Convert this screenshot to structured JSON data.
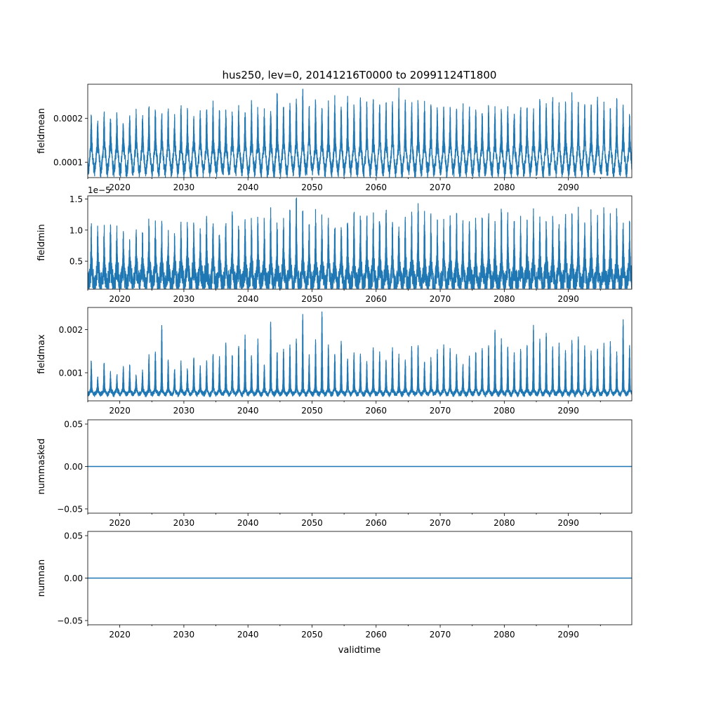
{
  "chart_data": {
    "type": "line",
    "title": "hus250, lev=0, 20141216T0000 to 20991124T1800",
    "xlabel": "validtime",
    "color": "#1f77b4",
    "time_range": [
      "2014-12-16T00:00",
      "2099-11-24T18:00"
    ],
    "xlim": [
      2015.0,
      2099.9
    ],
    "xticks": [
      2020,
      2030,
      2040,
      2050,
      2060,
      2070,
      2080,
      2090
    ],
    "xtick_labels": [
      "2020",
      "2030",
      "2040",
      "2050",
      "2060",
      "2070",
      "2080",
      "2090"
    ],
    "panels": [
      {
        "ylabel": "fieldmean",
        "offset_text": "",
        "ylim": [
          6.5e-05,
          0.000278
        ],
        "yticks": [
          0.0001,
          0.0002
        ],
        "ytick_labels": [
          "0.0001",
          "0.0002"
        ],
        "series": {
          "kind": "seasonal",
          "base_min": 8e-05,
          "base_max": 0.00014,
          "noise": 1.2e-05,
          "peak_years": [
            2015,
            2016,
            2017,
            2018,
            2019,
            2020,
            2021,
            2022,
            2023,
            2024,
            2025,
            2026,
            2027,
            2028,
            2029,
            2030,
            2031,
            2032,
            2033,
            2034,
            2035,
            2036,
            2037,
            2038,
            2039,
            2040,
            2041,
            2042,
            2043,
            2044,
            2045,
            2046,
            2047,
            2048,
            2049,
            2050,
            2051,
            2052,
            2053,
            2054,
            2055,
            2056,
            2057,
            2058,
            2059,
            2060,
            2061,
            2062,
            2063,
            2064,
            2065,
            2066,
            2067,
            2068,
            2069,
            2070,
            2071,
            2072,
            2073,
            2074,
            2075,
            2076,
            2077,
            2078,
            2079,
            2080,
            2081,
            2082,
            2083,
            2084,
            2085,
            2086,
            2087,
            2088,
            2089,
            2090,
            2091,
            2092,
            2093,
            2094,
            2095,
            2096,
            2097,
            2098,
            2099
          ],
          "peaks": [
            0.000205,
            0.000195,
            0.00021,
            0.0002,
            0.000215,
            0.00019,
            0.000205,
            0.00021,
            0.0002,
            0.000225,
            0.000215,
            0.000205,
            0.00022,
            0.0002,
            0.000225,
            0.000215,
            0.0002,
            0.00021,
            0.000225,
            0.00023,
            0.000215,
            0.00022,
            0.00021,
            0.000225,
            0.000215,
            0.00023,
            0.00022,
            0.000215,
            0.000225,
            0.000265,
            0.00022,
            0.000235,
            0.000245,
            0.000265,
            0.00023,
            0.00024,
            0.000225,
            0.00023,
            0.000245,
            0.000235,
            0.00024,
            0.00023,
            0.000245,
            0.000235,
            0.00024,
            0.00024,
            0.000235,
            0.000245,
            0.000265,
            0.00024,
            0.000235,
            0.00024,
            0.00023,
            0.000235,
            0.000225,
            0.00023,
            0.000225,
            0.000215,
            0.00023,
            0.000225,
            0.00022,
            0.000215,
            0.000225,
            0.00022,
            0.00022,
            0.000225,
            0.000215,
            0.00022,
            0.00023,
            0.000225,
            0.00025,
            0.000235,
            0.000245,
            0.000225,
            0.000235,
            0.00025,
            0.00024,
            0.000235,
            0.00024,
            0.000245,
            0.000235,
            0.000225,
            0.00024,
            0.00022,
            0.00021
          ]
        }
      },
      {
        "ylabel": "fieldmin",
        "offset_text": "1e−5",
        "ylim": [
          5e-07,
          1.55e-05
        ],
        "yticks": [
          5e-06,
          1e-05,
          1.5e-05
        ],
        "ytick_labels": [
          "0.5",
          "1.0",
          "1.5"
        ],
        "series": {
          "kind": "seasonal",
          "base_min": 1e-06,
          "base_max": 4e-06,
          "noise": 1.5e-06,
          "peak_years": [
            2015,
            2016,
            2017,
            2018,
            2019,
            2020,
            2021,
            2022,
            2023,
            2024,
            2025,
            2026,
            2027,
            2028,
            2029,
            2030,
            2031,
            2032,
            2033,
            2034,
            2035,
            2036,
            2037,
            2038,
            2039,
            2040,
            2041,
            2042,
            2043,
            2044,
            2045,
            2046,
            2047,
            2048,
            2049,
            2050,
            2051,
            2052,
            2053,
            2054,
            2055,
            2056,
            2057,
            2058,
            2059,
            2060,
            2061,
            2062,
            2063,
            2064,
            2065,
            2066,
            2067,
            2068,
            2069,
            2070,
            2071,
            2072,
            2073,
            2074,
            2075,
            2076,
            2077,
            2078,
            2079,
            2080,
            2081,
            2082,
            2083,
            2084,
            2085,
            2086,
            2087,
            2088,
            2089,
            2090,
            2091,
            2092,
            2093,
            2094,
            2095,
            2096,
            2097,
            2098,
            2099
          ],
          "peaks": [
            1e-05,
            9.5e-06,
            1e-05,
            1e-05,
            1e-05,
            9e-06,
            8e-06,
            9.5e-06,
            8.5e-06,
            1.15e-05,
            1.1e-05,
            1e-05,
            9e-06,
            8.5e-06,
            1.15e-05,
            1.05e-05,
            1.1e-05,
            9.5e-06,
            1.2e-05,
            1.1e-05,
            1.05e-05,
            1.1e-05,
            1.15e-05,
            1.1e-05,
            1.05e-05,
            1.1e-05,
            1.15e-05,
            1.1e-05,
            1.25e-05,
            1.05e-05,
            1.1e-05,
            1.35e-05,
            1.45e-05,
            1.25e-05,
            1.1e-05,
            1.2e-05,
            1.15e-05,
            1.2e-05,
            1.1e-05,
            1.15e-05,
            1.2e-05,
            1.25e-05,
            1.3e-05,
            1.15e-05,
            1.2e-05,
            1.25e-05,
            1.25e-05,
            1.2e-05,
            1.15e-05,
            1.1e-05,
            1.15e-05,
            1.45e-05,
            1.2e-05,
            1.15e-05,
            1.1e-05,
            1.05e-05,
            1.15e-05,
            1.2e-05,
            1.1e-05,
            1.05e-05,
            1.1e-05,
            1.15e-05,
            1.2e-05,
            1.1e-05,
            1.25e-05,
            1.2e-05,
            1.1e-05,
            1.15e-05,
            1.1e-05,
            1.2e-05,
            1.25e-05,
            1.15e-05,
            1.2e-05,
            1.1e-05,
            1.25e-05,
            1.2e-05,
            1.3e-05,
            1.1e-05,
            1.25e-05,
            1.15e-05,
            1.3e-05,
            1.2e-05,
            1.3e-05,
            1.1e-05,
            1.05e-05
          ]
        }
      },
      {
        "ylabel": "fieldmax",
        "offset_text": "",
        "ylim": [
          0.00035,
          0.00251
        ],
        "yticks": [
          0.001,
          0.002
        ],
        "ytick_labels": [
          "0.001",
          "0.002"
        ],
        "series": {
          "kind": "seasonal",
          "base_min": 0.0005,
          "base_max": 0.0006,
          "noise": 4e-05,
          "peak_years": [
            2015,
            2016,
            2017,
            2018,
            2019,
            2020,
            2021,
            2022,
            2023,
            2024,
            2025,
            2026,
            2027,
            2028,
            2029,
            2030,
            2031,
            2032,
            2033,
            2034,
            2035,
            2036,
            2037,
            2038,
            2039,
            2040,
            2041,
            2042,
            2043,
            2044,
            2045,
            2046,
            2047,
            2048,
            2049,
            2050,
            2051,
            2052,
            2053,
            2054,
            2055,
            2056,
            2057,
            2058,
            2059,
            2060,
            2061,
            2062,
            2063,
            2064,
            2065,
            2066,
            2067,
            2068,
            2069,
            2070,
            2071,
            2072,
            2073,
            2074,
            2075,
            2076,
            2077,
            2078,
            2079,
            2080,
            2081,
            2082,
            2083,
            2084,
            2085,
            2086,
            2087,
            2088,
            2089,
            2090,
            2091,
            2092,
            2093,
            2094,
            2095,
            2096,
            2097,
            2098,
            2099
          ],
          "peaks": [
            0.0013,
            0.0009,
            0.00125,
            0.001,
            0.00095,
            0.00115,
            0.0012,
            0.00095,
            0.00105,
            0.0014,
            0.0015,
            0.0021,
            0.0013,
            0.0011,
            0.00125,
            0.0011,
            0.00135,
            0.00115,
            0.00125,
            0.00145,
            0.00135,
            0.0017,
            0.0014,
            0.00165,
            0.0019,
            0.0014,
            0.00175,
            0.0012,
            0.0022,
            0.0015,
            0.00155,
            0.00165,
            0.0018,
            0.00235,
            0.0014,
            0.00175,
            0.0024,
            0.00165,
            0.00145,
            0.00175,
            0.00135,
            0.0015,
            0.00145,
            0.00125,
            0.00155,
            0.00145,
            0.0013,
            0.00155,
            0.0014,
            0.0013,
            0.0016,
            0.00165,
            0.00125,
            0.00135,
            0.0015,
            0.00165,
            0.00155,
            0.0014,
            0.0012,
            0.00135,
            0.0015,
            0.0016,
            0.00165,
            0.002,
            0.00175,
            0.0016,
            0.0015,
            0.00155,
            0.00165,
            0.0021,
            0.0018,
            0.0019,
            0.0016,
            0.0017,
            0.00155,
            0.00175,
            0.00185,
            0.0016,
            0.0015,
            0.00155,
            0.00165,
            0.0017,
            0.00145,
            0.0022,
            0.00165
          ]
        }
      },
      {
        "ylabel": "nummasked",
        "offset_text": "",
        "ylim": [
          -0.055,
          0.055
        ],
        "yticks": [
          -0.05,
          0.0,
          0.05
        ],
        "ytick_labels": [
          "−0.05",
          "0.00",
          "0.05"
        ],
        "series": {
          "kind": "constant",
          "value": 0
        }
      },
      {
        "ylabel": "numnan",
        "offset_text": "",
        "ylim": [
          -0.055,
          0.055
        ],
        "yticks": [
          -0.05,
          0.0,
          0.05
        ],
        "ytick_labels": [
          "−0.05",
          "0.00",
          "0.05"
        ],
        "series": {
          "kind": "constant",
          "value": 0
        }
      }
    ]
  }
}
